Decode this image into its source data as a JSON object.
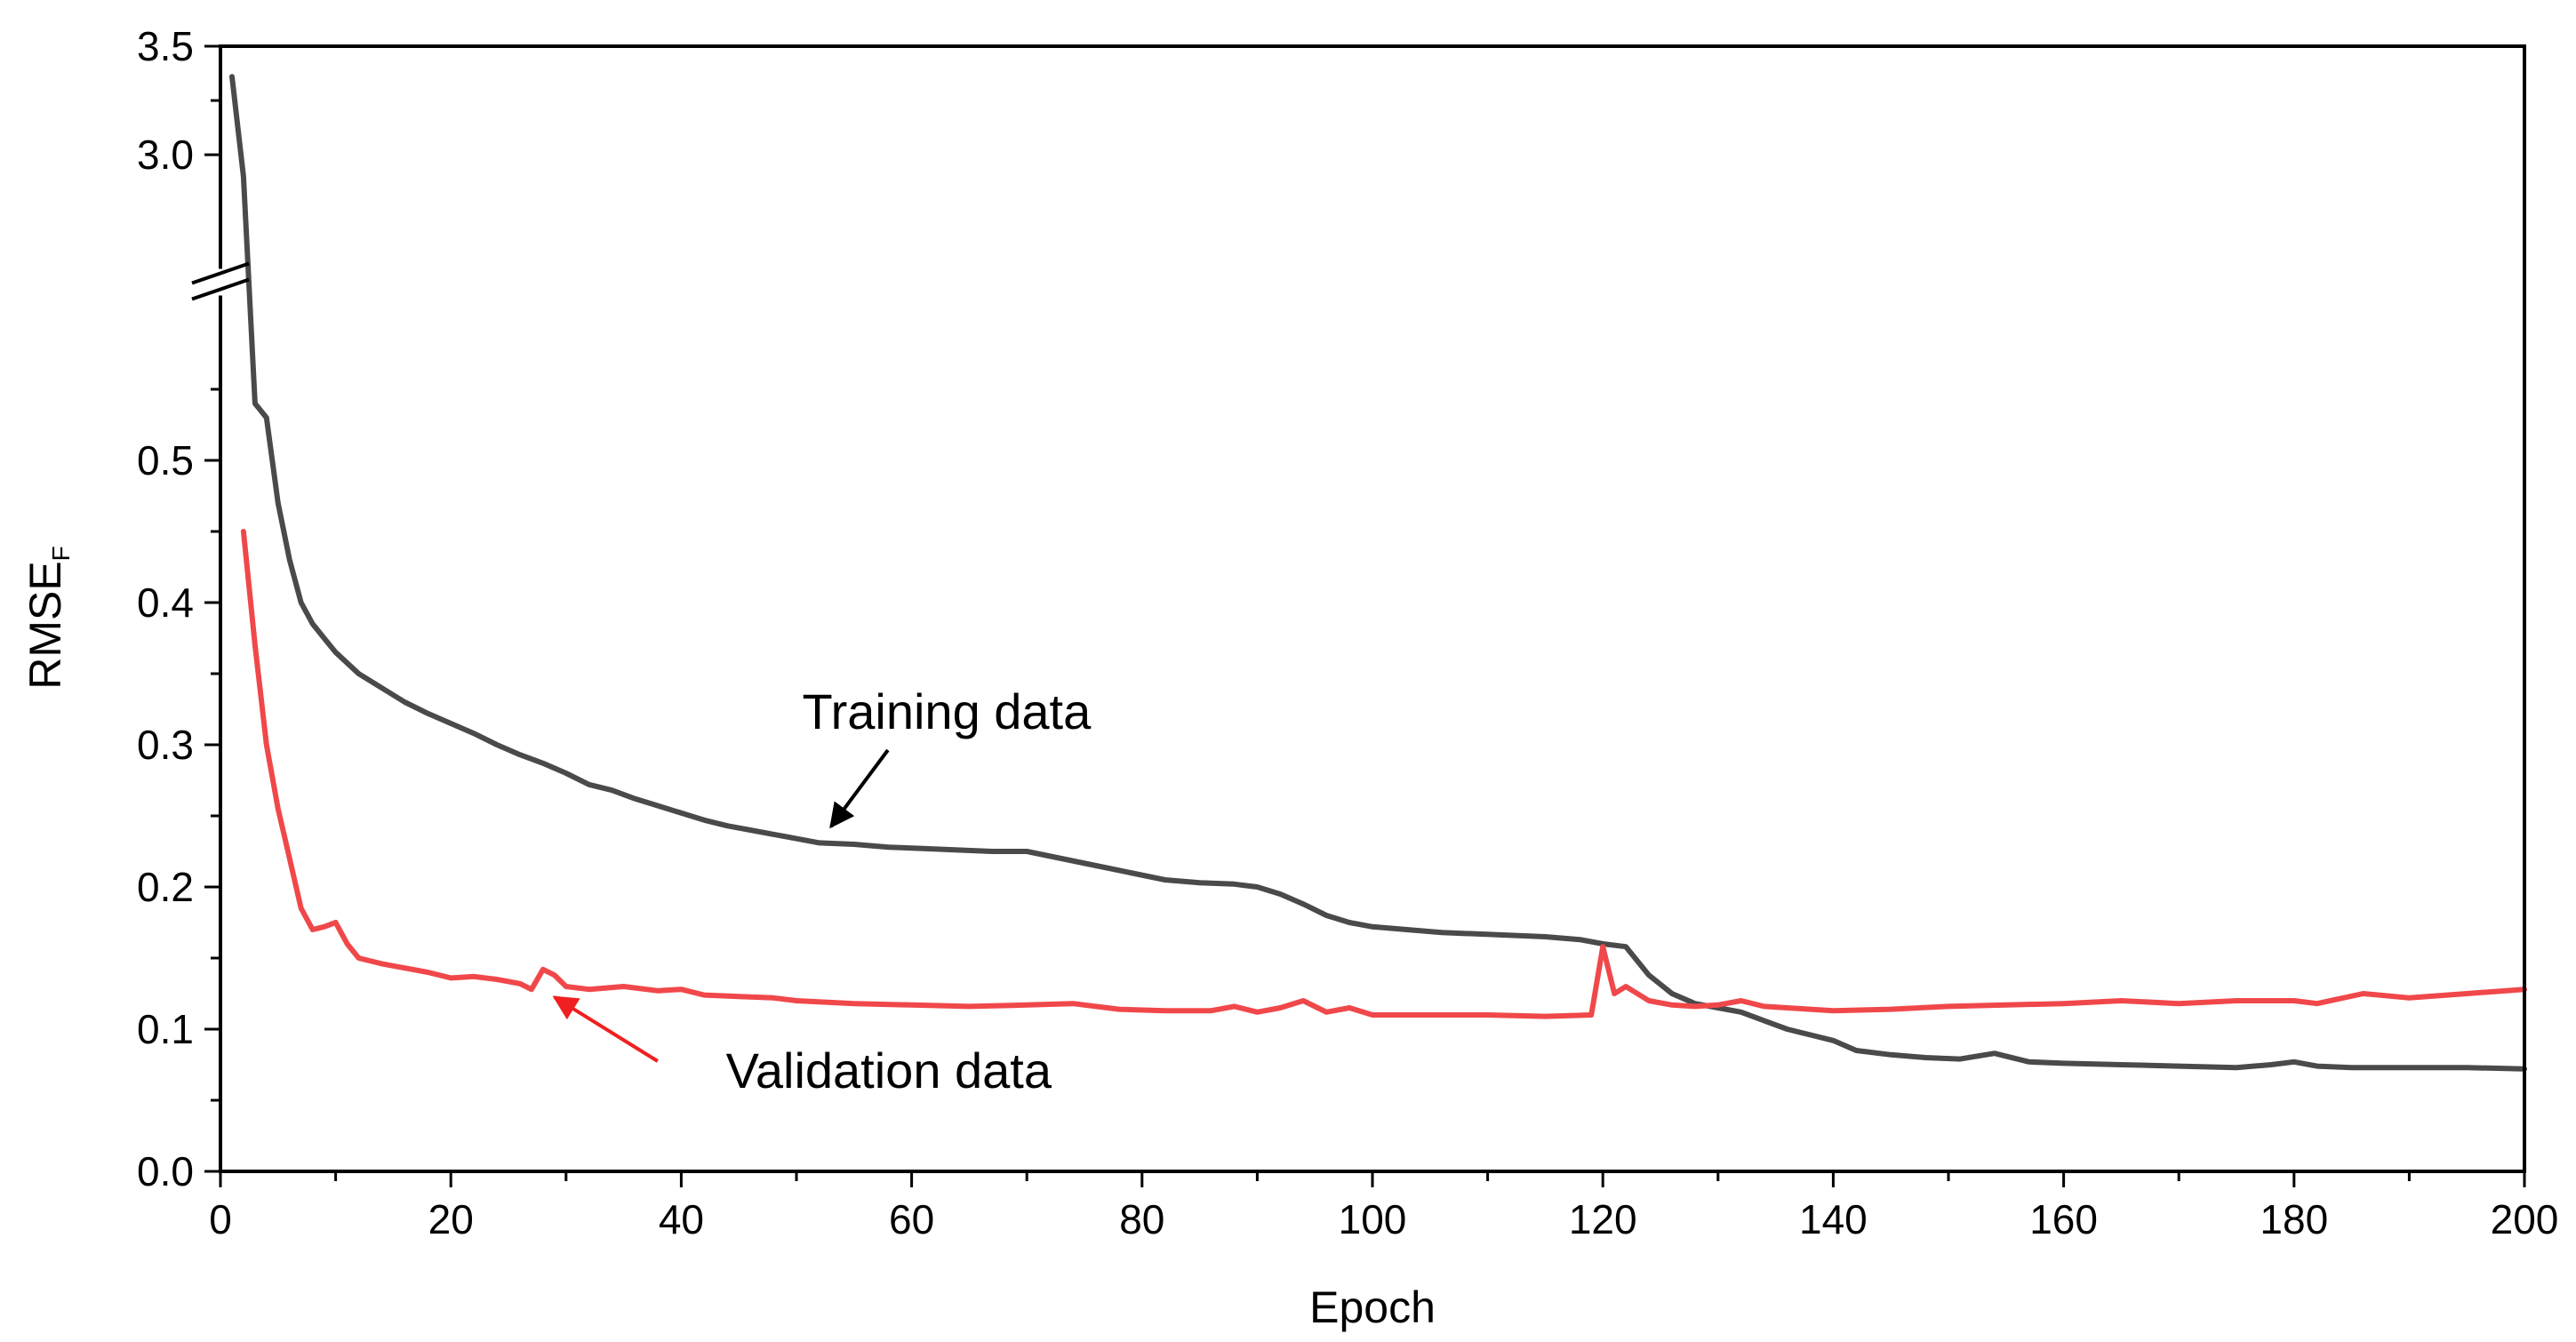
{
  "chart_data": {
    "type": "line",
    "title": "",
    "xlabel": "Epoch",
    "ylabel": "RMSE",
    "ylabel_subscript": "F",
    "xlim": [
      0,
      200
    ],
    "ylim": [
      0.0,
      3.5
    ],
    "axis_break": [
      0.57,
      2.8
    ],
    "x_ticks": [
      "0",
      "20",
      "40",
      "60",
      "80",
      "100",
      "120",
      "140",
      "160",
      "180",
      "200"
    ],
    "y_ticks": [
      "0.0",
      "0.1",
      "0.2",
      "0.3",
      "0.4",
      "0.5",
      "3.0",
      "3.5"
    ],
    "series": [
      {
        "name": "Training data",
        "color": "#4a4a4a",
        "x": [
          1,
          2,
          3,
          4,
          5,
          6,
          7,
          8,
          9,
          10,
          12,
          14,
          16,
          18,
          20,
          22,
          24,
          26,
          28,
          30,
          32,
          34,
          36,
          38,
          40,
          42,
          44,
          46,
          48,
          50,
          52,
          55,
          58,
          61,
          64,
          67,
          70,
          73,
          76,
          79,
          82,
          85,
          88,
          90,
          92,
          94,
          96,
          98,
          100,
          103,
          106,
          109,
          112,
          115,
          118,
          120,
          122,
          124,
          126,
          128,
          130,
          132,
          134,
          136,
          138,
          140,
          142,
          145,
          148,
          151,
          154,
          155,
          157,
          160,
          165,
          170,
          175,
          178,
          180,
          182,
          185,
          190,
          195,
          200
        ],
        "values": [
          3.36,
          2.9,
          0.54,
          0.53,
          0.47,
          0.43,
          0.4,
          0.385,
          0.375,
          0.365,
          0.35,
          0.34,
          0.33,
          0.322,
          0.315,
          0.308,
          0.3,
          0.293,
          0.287,
          0.28,
          0.272,
          0.268,
          0.262,
          0.257,
          0.252,
          0.247,
          0.243,
          0.24,
          0.237,
          0.234,
          0.231,
          0.23,
          0.228,
          0.227,
          0.226,
          0.225,
          0.225,
          0.22,
          0.215,
          0.21,
          0.205,
          0.203,
          0.202,
          0.2,
          0.195,
          0.188,
          0.18,
          0.175,
          0.172,
          0.17,
          0.168,
          0.167,
          0.166,
          0.165,
          0.163,
          0.16,
          0.158,
          0.138,
          0.125,
          0.118,
          0.115,
          0.112,
          0.106,
          0.1,
          0.096,
          0.092,
          0.085,
          0.082,
          0.08,
          0.079,
          0.083,
          0.081,
          0.077,
          0.076,
          0.075,
          0.074,
          0.073,
          0.075,
          0.077,
          0.074,
          0.073,
          0.073,
          0.073,
          0.072
        ]
      },
      {
        "name": "Validation data",
        "color": "#f0484a",
        "x": [
          2,
          3,
          4,
          5,
          6,
          7,
          8,
          9,
          10,
          11,
          12,
          14,
          16,
          18,
          20,
          22,
          24,
          26,
          27,
          28,
          29,
          30,
          32,
          35,
          38,
          40,
          42,
          45,
          48,
          50,
          55,
          60,
          65,
          70,
          74,
          78,
          82,
          86,
          88,
          90,
          92,
          94,
          96,
          98,
          100,
          105,
          110,
          115,
          119,
          120,
          121,
          122,
          124,
          126,
          128,
          130,
          132,
          134,
          136,
          138,
          140,
          145,
          150,
          155,
          160,
          165,
          170,
          175,
          180,
          182,
          186,
          190,
          195,
          200
        ],
        "values": [
          0.45,
          0.37,
          0.3,
          0.255,
          0.22,
          0.185,
          0.17,
          0.172,
          0.175,
          0.16,
          0.15,
          0.146,
          0.143,
          0.14,
          0.136,
          0.137,
          0.135,
          0.132,
          0.128,
          0.142,
          0.138,
          0.13,
          0.128,
          0.13,
          0.127,
          0.128,
          0.124,
          0.123,
          0.122,
          0.12,
          0.118,
          0.117,
          0.116,
          0.117,
          0.118,
          0.114,
          0.113,
          0.113,
          0.116,
          0.112,
          0.115,
          0.12,
          0.112,
          0.115,
          0.11,
          0.11,
          0.11,
          0.109,
          0.11,
          0.158,
          0.125,
          0.13,
          0.12,
          0.117,
          0.116,
          0.117,
          0.12,
          0.116,
          0.115,
          0.114,
          0.113,
          0.114,
          0.116,
          0.117,
          0.118,
          0.12,
          0.118,
          0.12,
          0.12,
          0.118,
          0.125,
          0.122,
          0.125,
          0.128
        ]
      }
    ],
    "annotations": [
      {
        "text": "Training data",
        "series": "Training data",
        "arrow_to": [
          53,
          0.25
        ],
        "color": "#000000"
      },
      {
        "text": "Validation data",
        "series": "Validation data",
        "arrow_to": [
          29,
          0.115
        ],
        "color": "#f02020"
      }
    ]
  }
}
